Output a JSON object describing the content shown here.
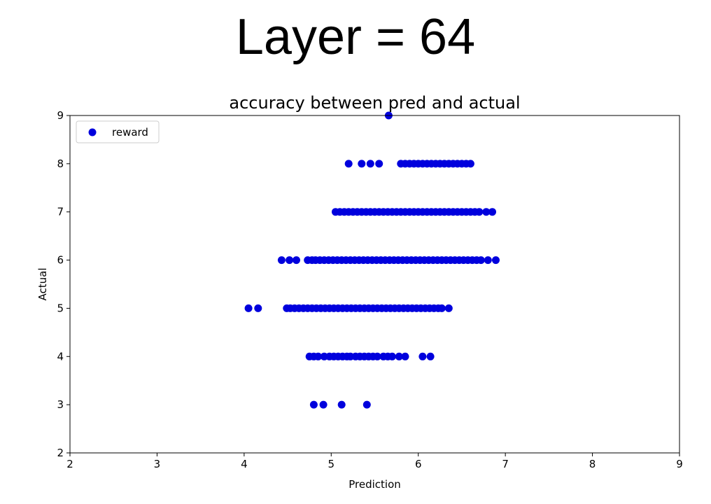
{
  "header": {
    "title": "Layer = 64"
  },
  "chart_data": {
    "type": "scatter",
    "title": "accuracy between pred and actual",
    "xlabel": "Prediction",
    "ylabel": "Actual",
    "xlim": [
      2,
      9
    ],
    "ylim": [
      2,
      9
    ],
    "xticks": [
      "2",
      "3",
      "4",
      "5",
      "6",
      "7",
      "8",
      "9"
    ],
    "yticks": [
      "2",
      "3",
      "4",
      "5",
      "6",
      "7",
      "8",
      "9"
    ],
    "grid": false,
    "legend": {
      "placement": "upper-left",
      "entries": [
        "reward"
      ]
    },
    "marker_color": "#0000dd",
    "series": [
      {
        "name": "reward",
        "points": [
          [
            5.66,
            9
          ],
          [
            5.2,
            8
          ],
          [
            5.35,
            8
          ],
          [
            5.45,
            8
          ],
          [
            5.55,
            8
          ],
          [
            5.8,
            8
          ],
          [
            5.85,
            8
          ],
          [
            5.9,
            8
          ],
          [
            5.95,
            8
          ],
          [
            6.0,
            8
          ],
          [
            6.05,
            8
          ],
          [
            6.1,
            8
          ],
          [
            6.15,
            8
          ],
          [
            6.2,
            8
          ],
          [
            6.25,
            8
          ],
          [
            6.3,
            8
          ],
          [
            6.35,
            8
          ],
          [
            6.4,
            8
          ],
          [
            6.45,
            8
          ],
          [
            6.5,
            8
          ],
          [
            6.55,
            8
          ],
          [
            6.6,
            8
          ],
          [
            5.05,
            7
          ],
          [
            5.1,
            7
          ],
          [
            5.15,
            7
          ],
          [
            5.2,
            7
          ],
          [
            5.25,
            7
          ],
          [
            5.3,
            7
          ],
          [
            5.35,
            7
          ],
          [
            5.4,
            7
          ],
          [
            5.45,
            7
          ],
          [
            5.5,
            7
          ],
          [
            5.55,
            7
          ],
          [
            5.6,
            7
          ],
          [
            5.65,
            7
          ],
          [
            5.7,
            7
          ],
          [
            5.75,
            7
          ],
          [
            5.8,
            7
          ],
          [
            5.85,
            7
          ],
          [
            5.9,
            7
          ],
          [
            5.95,
            7
          ],
          [
            6.0,
            7
          ],
          [
            6.05,
            7
          ],
          [
            6.1,
            7
          ],
          [
            6.15,
            7
          ],
          [
            6.2,
            7
          ],
          [
            6.25,
            7
          ],
          [
            6.3,
            7
          ],
          [
            6.35,
            7
          ],
          [
            6.4,
            7
          ],
          [
            6.45,
            7
          ],
          [
            6.5,
            7
          ],
          [
            6.55,
            7
          ],
          [
            6.6,
            7
          ],
          [
            6.65,
            7
          ],
          [
            6.7,
            7
          ],
          [
            6.78,
            7
          ],
          [
            6.85,
            7
          ],
          [
            4.43,
            6
          ],
          [
            4.52,
            6
          ],
          [
            4.6,
            6
          ],
          [
            4.73,
            6
          ],
          [
            4.78,
            6
          ],
          [
            4.82,
            6
          ],
          [
            4.87,
            6
          ],
          [
            4.92,
            6
          ],
          [
            4.97,
            6
          ],
          [
            5.02,
            6
          ],
          [
            5.07,
            6
          ],
          [
            5.12,
            6
          ],
          [
            5.17,
            6
          ],
          [
            5.22,
            6
          ],
          [
            5.27,
            6
          ],
          [
            5.32,
            6
          ],
          [
            5.37,
            6
          ],
          [
            5.42,
            6
          ],
          [
            5.47,
            6
          ],
          [
            5.52,
            6
          ],
          [
            5.57,
            6
          ],
          [
            5.62,
            6
          ],
          [
            5.67,
            6
          ],
          [
            5.72,
            6
          ],
          [
            5.77,
            6
          ],
          [
            5.82,
            6
          ],
          [
            5.87,
            6
          ],
          [
            5.92,
            6
          ],
          [
            5.97,
            6
          ],
          [
            6.02,
            6
          ],
          [
            6.07,
            6
          ],
          [
            6.12,
            6
          ],
          [
            6.17,
            6
          ],
          [
            6.22,
            6
          ],
          [
            6.27,
            6
          ],
          [
            6.32,
            6
          ],
          [
            6.37,
            6
          ],
          [
            6.42,
            6
          ],
          [
            6.47,
            6
          ],
          [
            6.52,
            6
          ],
          [
            6.57,
            6
          ],
          [
            6.62,
            6
          ],
          [
            6.67,
            6
          ],
          [
            6.72,
            6
          ],
          [
            6.8,
            6
          ],
          [
            6.89,
            6
          ],
          [
            4.05,
            5
          ],
          [
            4.16,
            5
          ],
          [
            4.49,
            5
          ],
          [
            4.53,
            5
          ],
          [
            4.58,
            5
          ],
          [
            4.63,
            5
          ],
          [
            4.68,
            5
          ],
          [
            4.73,
            5
          ],
          [
            4.78,
            5
          ],
          [
            4.83,
            5
          ],
          [
            4.88,
            5
          ],
          [
            4.93,
            5
          ],
          [
            4.98,
            5
          ],
          [
            5.03,
            5
          ],
          [
            5.08,
            5
          ],
          [
            5.13,
            5
          ],
          [
            5.18,
            5
          ],
          [
            5.23,
            5
          ],
          [
            5.28,
            5
          ],
          [
            5.33,
            5
          ],
          [
            5.38,
            5
          ],
          [
            5.43,
            5
          ],
          [
            5.48,
            5
          ],
          [
            5.53,
            5
          ],
          [
            5.58,
            5
          ],
          [
            5.63,
            5
          ],
          [
            5.68,
            5
          ],
          [
            5.73,
            5
          ],
          [
            5.78,
            5
          ],
          [
            5.83,
            5
          ],
          [
            5.88,
            5
          ],
          [
            5.93,
            5
          ],
          [
            5.98,
            5
          ],
          [
            6.03,
            5
          ],
          [
            6.08,
            5
          ],
          [
            6.13,
            5
          ],
          [
            6.18,
            5
          ],
          [
            6.23,
            5
          ],
          [
            6.27,
            5
          ],
          [
            6.35,
            5
          ],
          [
            4.75,
            4
          ],
          [
            4.8,
            4
          ],
          [
            4.85,
            4
          ],
          [
            4.92,
            4
          ],
          [
            4.98,
            4
          ],
          [
            5.03,
            4
          ],
          [
            5.08,
            4
          ],
          [
            5.13,
            4
          ],
          [
            5.18,
            4
          ],
          [
            5.22,
            4
          ],
          [
            5.28,
            4
          ],
          [
            5.33,
            4
          ],
          [
            5.38,
            4
          ],
          [
            5.43,
            4
          ],
          [
            5.48,
            4
          ],
          [
            5.53,
            4
          ],
          [
            5.6,
            4
          ],
          [
            5.65,
            4
          ],
          [
            5.7,
            4
          ],
          [
            5.78,
            4
          ],
          [
            5.85,
            4
          ],
          [
            6.05,
            4
          ],
          [
            6.14,
            4
          ],
          [
            4.8,
            3
          ],
          [
            4.91,
            3
          ],
          [
            5.12,
            3
          ],
          [
            5.41,
            3
          ]
        ]
      }
    ]
  }
}
